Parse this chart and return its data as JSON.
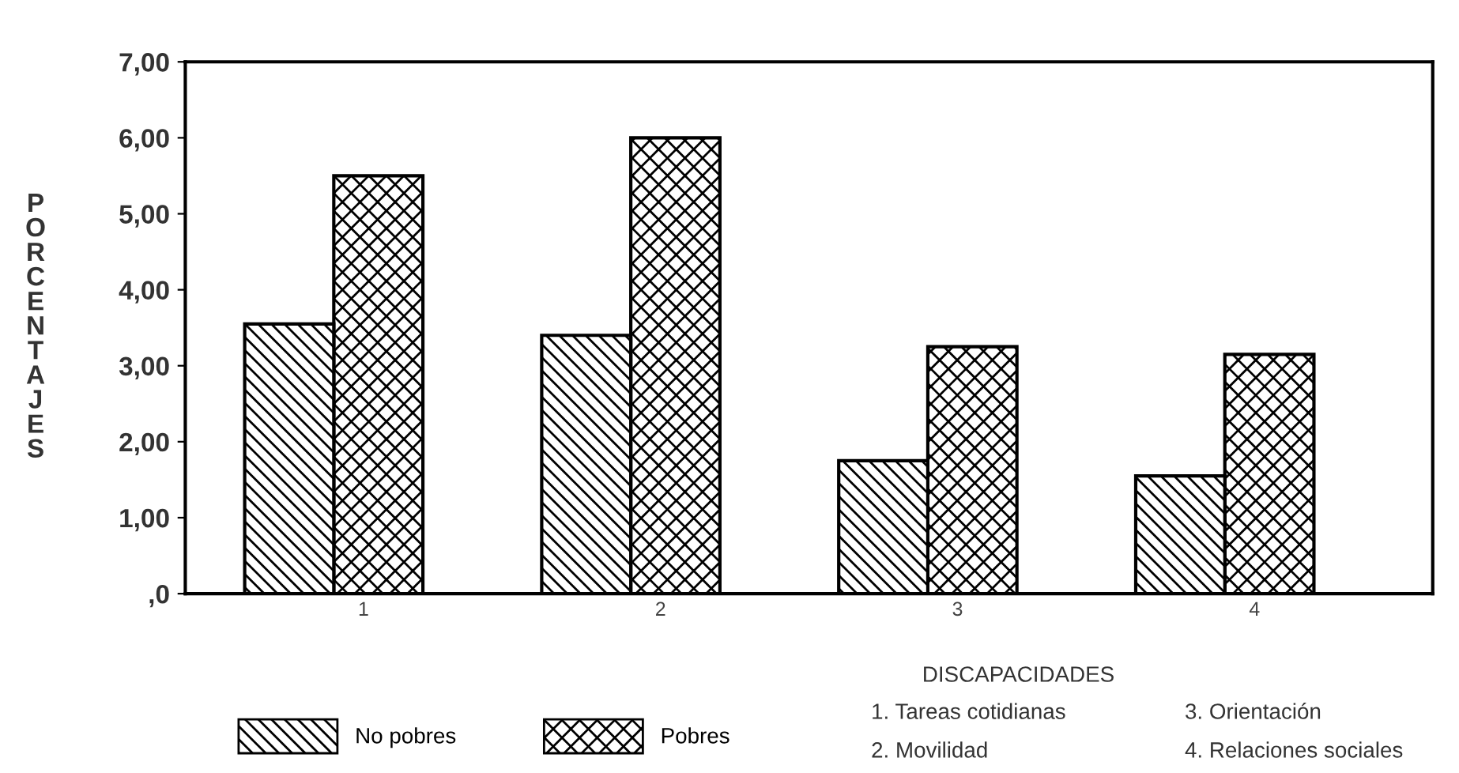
{
  "chart_data": {
    "type": "bar",
    "xlabel": "DISCAPACIDADES",
    "ylabel": "PORCENTAJES",
    "categories": [
      "1",
      "2",
      "3",
      "4"
    ],
    "series": [
      {
        "name": "No pobres",
        "color": "#000000",
        "values": [
          3.55,
          3.4,
          1.75,
          1.55
        ]
      },
      {
        "name": "Pobres",
        "color": "#000000",
        "values": [
          5.5,
          6.0,
          3.25,
          3.15
        ]
      }
    ],
    "ylim": [
      0,
      7
    ],
    "yticks": [
      {
        "value": 0,
        "label": ",0"
      },
      {
        "value": 1,
        "label": "1,00"
      },
      {
        "value": 2,
        "label": "2,00"
      },
      {
        "value": 3,
        "label": "3,00"
      },
      {
        "value": 4,
        "label": "4,00"
      },
      {
        "value": 5,
        "label": "5,00"
      },
      {
        "value": 6,
        "label": "6,00"
      },
      {
        "value": 7,
        "label": "7,00"
      }
    ],
    "grid": false,
    "legend": "bottom",
    "annotations": [
      "1. Tareas cotidianas",
      "2. Movilidad",
      "3. Orientación",
      "4. Relaciones sociales"
    ]
  }
}
